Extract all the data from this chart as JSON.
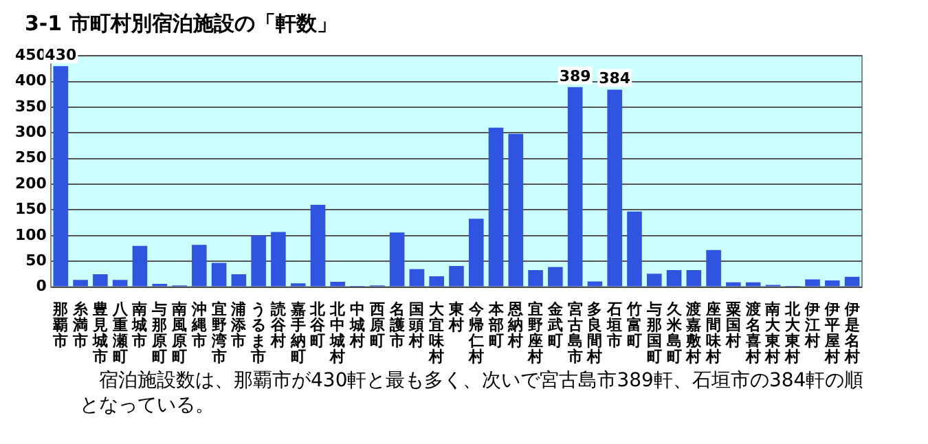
{
  "chart_data": {
    "type": "bar",
    "title": "3-1 市町村別宿泊施設の「軒数」",
    "categories": [
      "那覇市",
      "糸満市",
      "豊見城市",
      "八重瀬町",
      "南城市",
      "与那原町",
      "南風原町",
      "沖縄市",
      "宜野湾市",
      "浦添市",
      "うるま市",
      "読谷村",
      "嘉手納町",
      "北谷町",
      "北中城村",
      "中城村",
      "西原町",
      "名護市",
      "国頭村",
      "大宜味村",
      "東村",
      "今帰仁村",
      "本部町",
      "恩納村",
      "宜野座村",
      "金武町",
      "宮古島市",
      "多良間村",
      "石垣市",
      "竹富町",
      "与那国町",
      "久米島町",
      "渡嘉敷村",
      "座間味村",
      "粟国村",
      "渡名喜村",
      "南大東村",
      "北大東村",
      "伊江村",
      "伊平屋村",
      "伊是名村"
    ],
    "values": [
      430,
      14,
      25,
      14,
      80,
      6,
      3,
      82,
      47,
      25,
      100,
      107,
      7,
      160,
      10,
      2,
      3,
      106,
      35,
      21,
      41,
      133,
      310,
      298,
      33,
      39,
      389,
      11,
      384,
      147,
      26,
      33,
      33,
      72,
      9,
      9,
      4,
      2,
      15,
      13,
      20
    ],
    "value_labels": [
      "430",
      null,
      null,
      null,
      null,
      null,
      null,
      null,
      null,
      null,
      null,
      null,
      null,
      null,
      null,
      null,
      null,
      null,
      null,
      null,
      null,
      null,
      null,
      null,
      null,
      null,
      "389",
      null,
      "384",
      null,
      null,
      null,
      null,
      null,
      null,
      null,
      null,
      null,
      null,
      null,
      null
    ],
    "color": "#2f55e0",
    "ylim": [
      0,
      450
    ],
    "yticks": [
      0,
      50,
      100,
      150,
      200,
      250,
      300,
      350,
      400,
      450
    ],
    "grid": "y",
    "legend": false,
    "annotations": [
      "宿泊施設数は、那覇市が430軒と最も多く、次いで宮古島市389軒、石垣市の384軒の順となっている。"
    ]
  }
}
